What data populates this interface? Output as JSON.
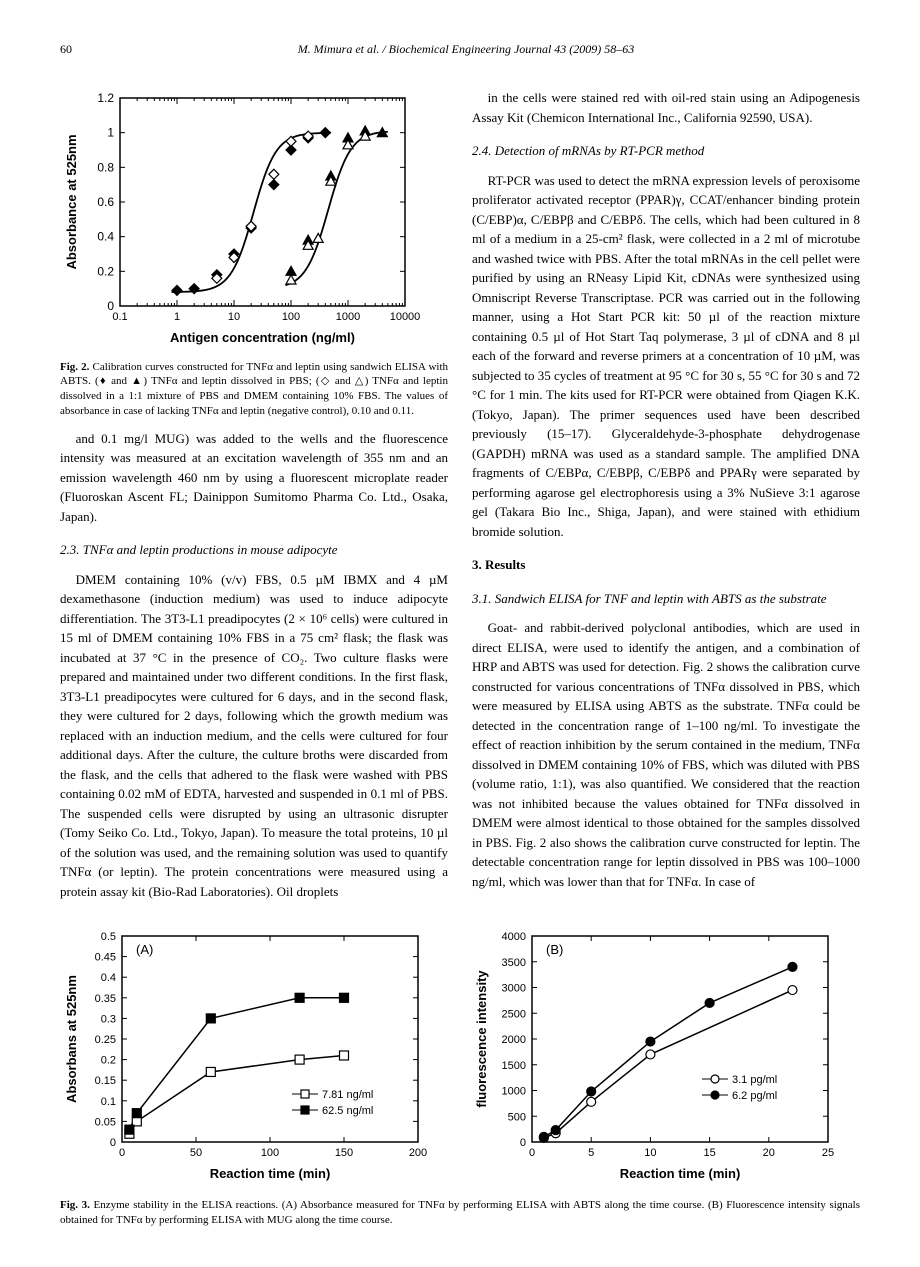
{
  "header": {
    "page": "60",
    "citation": "M. Mimura et al. / Biochemical Engineering Journal 43 (2009) 58–63"
  },
  "fig2": {
    "caption_bold": "Fig. 2.",
    "caption": " Calibration curves constructed for TNFα and leptin using sandwich ELISA with ABTS. (♦ and ▲) TNFα and leptin dissolved in PBS; (◇ and △) TNFα and leptin dissolved in a 1:1 mixture of PBS and DMEM containing 10% FBS. The values of absorbance in case of lacking TNFα and leptin (negative control), 0.10 and 0.11.",
    "ylabel": "Absorbance at 525nm",
    "xlabel": "Antigen concentration (ng/ml)",
    "ylim": [
      0,
      1.2
    ],
    "ytick_step": 0.2,
    "xticks": [
      "0.1",
      "1",
      "10",
      "100",
      "1000",
      "10000"
    ],
    "series_tnf_filled": [
      [
        1,
        0.09
      ],
      [
        2,
        0.1
      ],
      [
        5,
        0.18
      ],
      [
        10,
        0.3
      ],
      [
        20,
        0.45
      ],
      [
        50,
        0.7
      ],
      [
        100,
        0.9
      ],
      [
        200,
        0.97
      ],
      [
        400,
        1.0
      ]
    ],
    "series_tnf_open": [
      [
        5,
        0.16
      ],
      [
        10,
        0.28
      ],
      [
        20,
        0.46
      ],
      [
        50,
        0.76
      ],
      [
        100,
        0.95
      ],
      [
        200,
        0.98
      ]
    ],
    "series_lep_filled": [
      [
        100,
        0.2
      ],
      [
        200,
        0.38
      ],
      [
        500,
        0.75
      ],
      [
        1000,
        0.97
      ],
      [
        2000,
        1.01
      ],
      [
        4000,
        1.0
      ]
    ],
    "series_lep_open": [
      [
        100,
        0.15
      ],
      [
        200,
        0.35
      ],
      [
        300,
        0.39
      ],
      [
        500,
        0.72
      ],
      [
        1000,
        0.93
      ],
      [
        2000,
        0.98
      ]
    ],
    "colors": {
      "line": "#000000",
      "fill": "#000000",
      "open": "#ffffff",
      "axis": "#000000"
    }
  },
  "body": {
    "p1": "and 0.1 mg/l MUG) was added to the wells and the fluorescence intensity was measured at an excitation wavelength of 355 nm and an emission wavelength 460 nm by using a fluorescent microplate reader (Fluoroskan Ascent FL; Dainippon Sumitomo Pharma Co. Ltd., Osaka, Japan).",
    "s23": "2.3. TNFα and leptin productions in mouse adipocyte",
    "p2": "DMEM containing 10% (v/v) FBS, 0.5 µM IBMX and 4 µM dexamethasone (induction medium) was used to induce adipocyte differentiation. The 3T3-L1 preadipocytes (2 × 10⁶ cells) were cultured in 15 ml of DMEM containing 10% FBS in a 75 cm² flask; the flask was incubated at 37 °C in the presence of CO₂. Two culture flasks were prepared and maintained under two different conditions. In the first flask, 3T3-L1 preadipocytes were cultured for 6 days, and in the second flask, they were cultured for 2 days, following which the growth medium was replaced with an induction medium, and the cells were cultured for four additional days. After the culture, the culture broths were discarded from the flask, and the cells that adhered to the flask were washed with PBS containing 0.02 mM of EDTA, harvested and suspended in 0.1 ml of PBS. The suspended cells were disrupted by using an ultrasonic disrupter (Tomy Seiko Co. Ltd., Tokyo, Japan). To measure the total proteins, 10 µl of the solution was used, and the remaining solution was used to quantify TNFα (or leptin). The protein concentrations were measured using a protein assay kit (Bio-Rad Laboratories). Oil droplets",
    "p3": "in the cells were stained red with oil-red stain using an Adipogenesis Assay Kit (Chemicon International Inc., California 92590, USA).",
    "s24": "2.4. Detection of mRNAs by RT-PCR method",
    "p4": "RT-PCR was used to detect the mRNA expression levels of peroxisome proliferator activated receptor (PPAR)γ, CCAT/enhancer binding protein (C/EBP)α, C/EBPβ and C/EBPδ. The cells, which had been cultured in 8 ml of a medium in a 25-cm² flask, were collected in a 2 ml of microtube and washed twice with PBS. After the total mRNAs in the cell pellet were purified by using an RNeasy Lipid Kit, cDNAs were synthesized using Omniscript Reverse Transcriptase. PCR was carried out in the following manner, using a Hot Start PCR kit: 50 µl of the reaction mixture containing 0.5 µl of Hot Start Taq polymerase, 3 µl of cDNA and 8 µl each of the forward and reverse primers at a concentration of 10 µM, was subjected to 35 cycles of treatment at 95 °C for 30 s, 55 °C for 30 s and 72 °C for 1 min. The kits used for RT-PCR were obtained from Qiagen K.K. (Tokyo, Japan). The primer sequences used have been described previously (15–17). Glyceraldehyde-3-phosphate dehydrogenase (GAPDH) mRNA was used as a standard sample. The amplified DNA fragments of C/EBPα, C/EBPβ, C/EBPδ and PPARγ were separated by performing agarose gel electrophoresis using a 3% NuSieve 3:1 agarose gel (Takara Bio Inc., Shiga, Japan), and were stained with ethidium bromide solution.",
    "s3": "3. Results",
    "s31": "3.1. Sandwich ELISA for TNF and leptin with ABTS as the substrate",
    "p5": "Goat- and rabbit-derived polyclonal antibodies, which are used in direct ELISA, were used to identify the antigen, and a combination of HRP and ABTS was used for detection. Fig. 2 shows the calibration curve constructed for various concentrations of TNFα dissolved in PBS, which were measured by ELISA using ABTS as the substrate. TNFα could be detected in the concentration range of 1–100 ng/ml. To investigate the effect of reaction inhibition by the serum contained in the medium, TNFα dissolved in DMEM containing 10% of FBS, which was diluted with PBS (volume ratio, 1:1), was also quantified. We considered that the reaction was not inhibited because the values obtained for TNFα dissolved in DMEM were almost identical to those obtained for the samples dissolved in PBS. Fig. 2 also shows the calibration curve constructed for leptin. The detectable concentration range for leptin dissolved in PBS was 100–1000 ng/ml, which was lower than that for TNFα. In case of"
  },
  "fig3": {
    "caption_bold": "Fig. 3.",
    "caption": " Enzyme stability in the ELISA reactions. (A) Absorbance measured for TNFα by performing ELISA with ABTS along the time course. (B) Fluorescence intensity signals obtained for TNFα by performing ELISA with MUG along the time course.",
    "A": {
      "label": "(A)",
      "ylabel": "Absorbans at 525nm",
      "xlabel": "Reaction time (min)",
      "ylim": [
        0,
        0.5
      ],
      "ytick_step": 0.05,
      "xlim": [
        0,
        200
      ],
      "xtick_step": 50,
      "legend": [
        {
          "m": "open",
          "t": "7.81 ng/ml"
        },
        {
          "m": "filled",
          "t": "62.5 ng/ml"
        }
      ],
      "series_open": [
        [
          5,
          0.02
        ],
        [
          10,
          0.05
        ],
        [
          60,
          0.17
        ],
        [
          120,
          0.2
        ],
        [
          150,
          0.21
        ]
      ],
      "series_filled": [
        [
          5,
          0.03
        ],
        [
          10,
          0.07
        ],
        [
          60,
          0.3
        ],
        [
          120,
          0.35
        ],
        [
          150,
          0.35
        ]
      ]
    },
    "B": {
      "label": "(B)",
      "ylabel": "fluorescence intensity",
      "xlabel": "Reaction time (min)",
      "ylim": [
        0,
        4000
      ],
      "ytick_step": 500,
      "xlim": [
        0,
        25
      ],
      "xtick_step": 5,
      "legend": [
        {
          "m": "open",
          "t": "3.1 pg/ml"
        },
        {
          "m": "filled",
          "t": "6.2 pg/ml"
        }
      ],
      "series_open": [
        [
          1,
          80
        ],
        [
          2,
          170
        ],
        [
          5,
          780
        ],
        [
          10,
          1700
        ],
        [
          22,
          2950
        ]
      ],
      "series_filled": [
        [
          1,
          100
        ],
        [
          2,
          230
        ],
        [
          5,
          980
        ],
        [
          10,
          1950
        ],
        [
          15,
          2700
        ],
        [
          22,
          3400
        ]
      ]
    }
  }
}
